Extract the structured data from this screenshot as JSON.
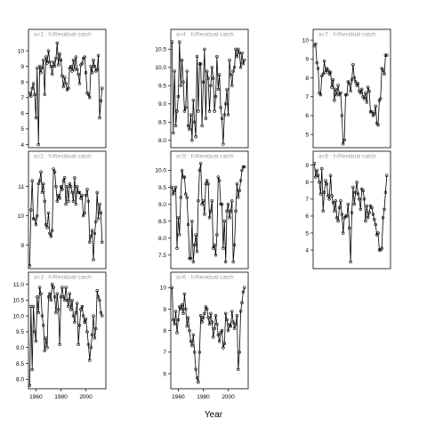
{
  "xlabel": "Year",
  "chart_data": [
    {
      "type": "line",
      "strip_label": "a=1 : f=Residual catch",
      "yticks": [
        4,
        5,
        6,
        7,
        8,
        9,
        10
      ],
      "ylim": [
        3.8,
        10.8
      ],
      "xlim": [
        1954,
        2016
      ],
      "x": [
        1955,
        1956,
        1957,
        1958,
        1959,
        1960,
        1961,
        1962,
        1963,
        1964,
        1965,
        1966,
        1967,
        1968,
        1969,
        1970,
        1971,
        1972,
        1973,
        1974,
        1975,
        1976,
        1977,
        1978,
        1979,
        1980,
        1981,
        1982,
        1983,
        1984,
        1985,
        1986,
        1987,
        1988,
        1989,
        1990,
        1991,
        1992,
        1993,
        1994,
        1995,
        1996,
        1997,
        1998,
        1999,
        2000,
        2001,
        2002,
        2003,
        2004,
        2005,
        2006,
        2007,
        2008,
        2009,
        2010,
        2011,
        2012,
        2013
      ],
      "y": [
        7.3,
        7.1,
        7.6,
        7.9,
        7.2,
        5.7,
        8.9,
        4.0,
        9.0,
        8.6,
        8.9,
        9.4,
        7.2,
        9.6,
        9.2,
        10.0,
        9.3,
        9.0,
        8.5,
        9.3,
        9.0,
        9.5,
        10.5,
        9.1,
        9.8,
        9.4,
        8.4,
        7.7,
        8.3,
        7.9,
        7.5,
        7.6,
        8.9,
        9.0,
        8.7,
        9.4,
        8.8,
        9.6,
        8.8,
        8.5,
        7.9,
        9.1,
        9.2,
        9.5,
        9.6,
        8.6,
        7.3,
        7.2,
        7.0,
        9.0,
        8.6,
        9.4,
        9.0,
        8.7,
        8.8,
        9.7,
        5.7,
        6.8,
        7.6
      ]
    },
    {
      "type": "line",
      "strip_label": "a=4 : f=Residual catch",
      "yticks": [
        8.0,
        8.5,
        9.0,
        9.5,
        10.0,
        10.5
      ],
      "ylim": [
        7.8,
        10.8
      ],
      "xlim": [
        1954,
        2016
      ],
      "x": [
        1955,
        1956,
        1957,
        1958,
        1959,
        1960,
        1961,
        1962,
        1963,
        1964,
        1965,
        1966,
        1967,
        1968,
        1969,
        1970,
        1971,
        1972,
        1973,
        1974,
        1975,
        1976,
        1977,
        1978,
        1979,
        1980,
        1981,
        1982,
        1983,
        1984,
        1985,
        1986,
        1987,
        1988,
        1989,
        1990,
        1991,
        1992,
        1993,
        1994,
        1995,
        1996,
        1997,
        1998,
        1999,
        2000,
        2001,
        2002,
        2003,
        2004,
        2005,
        2006,
        2007,
        2008,
        2009,
        2010,
        2011,
        2012,
        2013
      ],
      "y": [
        10.7,
        8.2,
        9.9,
        8.4,
        8.8,
        9.2,
        10.7,
        9.5,
        10.2,
        9.6,
        8.8,
        8.9,
        9.9,
        8.4,
        8.3,
        8.7,
        8.0,
        9.1,
        8.5,
        8.1,
        10.3,
        8.8,
        10.1,
        10.1,
        8.4,
        9.6,
        10.5,
        8.6,
        9.9,
        9.7,
        8.8,
        9.5,
        10.0,
        9.7,
        8.8,
        9.2,
        10.3,
        9.4,
        9.8,
        8.9,
        8.6,
        7.9,
        8.7,
        9.0,
        9.4,
        8.7,
        10.2,
        9.8,
        9.5,
        9.9,
        10.0,
        10.5,
        10.3,
        10.5,
        10.4,
        10.0,
        10.4,
        10.1,
        10.2
      ]
    },
    {
      "type": "line",
      "strip_label": "a=7 : f=Residual catch",
      "yticks": [
        5,
        6,
        7,
        8,
        9,
        10
      ],
      "ylim": [
        4.3,
        10.1
      ],
      "xlim": [
        1954,
        2016
      ],
      "x": [
        1955,
        1956,
        1957,
        1958,
        1959,
        1960,
        1961,
        1962,
        1963,
        1964,
        1965,
        1966,
        1967,
        1968,
        1969,
        1970,
        1971,
        1972,
        1973,
        1974,
        1975,
        1976,
        1977,
        1978,
        1979,
        1980,
        1981,
        1982,
        1983,
        1984,
        1985,
        1986,
        1987,
        1988,
        1989,
        1990,
        1991,
        1992,
        1993,
        1994,
        1995,
        1996,
        1997,
        1998,
        1999,
        2000,
        2001,
        2002,
        2003,
        2004,
        2005,
        2006,
        2007,
        2008,
        2009,
        2010,
        2011,
        2012,
        2013
      ],
      "y": [
        9.7,
        9.8,
        8.8,
        8.5,
        7.2,
        7.1,
        8.1,
        8.2,
        8.9,
        8.3,
        8.5,
        8.4,
        8.2,
        8.3,
        7.5,
        7.9,
        6.8,
        7.4,
        7.1,
        7.6,
        7.1,
        7.2,
        6.0,
        4.5,
        4.7,
        7.1,
        7.1,
        7.8,
        7.7,
        7.3,
        7.9,
        8.7,
        8.0,
        7.8,
        7.6,
        7.7,
        7.3,
        7.2,
        7.4,
        7.0,
        6.9,
        7.2,
        6.7,
        7.5,
        7.3,
        6.2,
        6.2,
        6.0,
        6.1,
        6.5,
        5.6,
        5.5,
        6.8,
        6.9,
        8.5,
        8.4,
        8.2,
        9.2,
        9.2
      ]
    },
    {
      "type": "line",
      "strip_label": "a=2 : f=Residual catch",
      "yticks": [
        9,
        10,
        11
      ],
      "ylim": [
        8.2,
        11.9
      ],
      "xlim": [
        1954,
        2016
      ],
      "x": [
        1955,
        1956,
        1957,
        1958,
        1959,
        1960,
        1961,
        1962,
        1963,
        1964,
        1965,
        1966,
        1967,
        1968,
        1969,
        1970,
        1971,
        1972,
        1973,
        1974,
        1975,
        1976,
        1977,
        1978,
        1979,
        1980,
        1981,
        1982,
        1983,
        1984,
        1985,
        1986,
        1987,
        1988,
        1989,
        1990,
        1991,
        1992,
        1993,
        1994,
        1995,
        1996,
        1997,
        1998,
        1999,
        2000,
        2001,
        2002,
        2003,
        2004,
        2005,
        2006,
        2007,
        2008,
        2009,
        2010,
        2011,
        2012,
        2013
      ],
      "y": [
        8.3,
        10.2,
        11.2,
        9.9,
        9.9,
        9.7,
        10.0,
        11.1,
        11.2,
        11.5,
        10.8,
        11.1,
        10.5,
        9.7,
        9.6,
        10.1,
        9.4,
        9.3,
        9.5,
        11.6,
        11.5,
        11.0,
        10.5,
        10.7,
        10.6,
        11.0,
        10.9,
        11.2,
        11.3,
        10.4,
        11.0,
        10.5,
        11.1,
        11.0,
        10.8,
        10.5,
        11.3,
        10.4,
        11.0,
        10.8,
        10.8,
        10.6,
        10.7,
        10.0,
        10.1,
        10.7,
        10.9,
        10.5,
        9.1,
        9.3,
        9.5,
        8.5,
        9.4,
        9.8,
        10.8,
        9.9,
        10.4,
        10.1,
        9.1
      ]
    },
    {
      "type": "line",
      "strip_label": "a=5 : f=Residual catch",
      "yticks": [
        7.5,
        8.0,
        8.5,
        9.0,
        9.5,
        10.0
      ],
      "ylim": [
        7.1,
        10.3
      ],
      "xlim": [
        1954,
        2016
      ],
      "x": [
        1955,
        1956,
        1957,
        1958,
        1959,
        1960,
        1961,
        1962,
        1963,
        1964,
        1965,
        1966,
        1967,
        1968,
        1969,
        1970,
        1971,
        1972,
        1973,
        1974,
        1975,
        1976,
        1977,
        1978,
        1979,
        1980,
        1981,
        1982,
        1983,
        1984,
        1985,
        1986,
        1987,
        1988,
        1989,
        1990,
        1991,
        1992,
        1993,
        1994,
        1995,
        1996,
        1997,
        1998,
        1999,
        2000,
        2001,
        2002,
        2003,
        2004,
        2005,
        2006,
        2007,
        2008,
        2009,
        2010,
        2011,
        2012,
        2013
      ],
      "y": [
        9.5,
        9.3,
        9.4,
        9.5,
        7.7,
        8.6,
        8.1,
        9.2,
        10.0,
        9.8,
        9.8,
        9.3,
        9.2,
        8.4,
        7.4,
        7.4,
        8.5,
        7.3,
        7.8,
        8.1,
        7.6,
        9.1,
        10.0,
        10.2,
        9.0,
        9.1,
        8.7,
        9.6,
        9.7,
        9.6,
        8.6,
        8.8,
        9.1,
        7.7,
        7.8,
        7.5,
        8.1,
        9.8,
        9.7,
        9.0,
        9.0,
        7.7,
        8.5,
        7.3,
        8.8,
        9.0,
        8.6,
        8.8,
        9.1,
        7.3,
        7.8,
        8.8,
        9.6,
        9.2,
        9.4,
        9.7,
        10.0,
        10.1,
        10.1
      ]
    },
    {
      "type": "line",
      "strip_label": "a=8 : f=Residual catch",
      "yticks": [
        4,
        5,
        6,
        7,
        8,
        9
      ],
      "ylim": [
        2.9,
        9.3
      ],
      "xlim": [
        1954,
        2016
      ],
      "x": [
        1955,
        1956,
        1957,
        1958,
        1959,
        1960,
        1961,
        1962,
        1963,
        1964,
        1965,
        1966,
        1967,
        1968,
        1969,
        1970,
        1971,
        1972,
        1973,
        1974,
        1975,
        1976,
        1977,
        1978,
        1979,
        1980,
        1981,
        1982,
        1983,
        1984,
        1985,
        1986,
        1987,
        1988,
        1989,
        1990,
        1991,
        1992,
        1993,
        1994,
        1995,
        1996,
        1997,
        1998,
        1999,
        2000,
        2001,
        2002,
        2003,
        2004,
        2005,
        2006,
        2007,
        2008,
        2009,
        2010,
        2011,
        2012,
        2013
      ],
      "y": [
        9.1,
        8.3,
        8.7,
        8.4,
        8.0,
        7.3,
        8.8,
        6.3,
        7.4,
        8.1,
        7.9,
        7.2,
        7.0,
        8.4,
        7.2,
        6.8,
        6.3,
        6.9,
        5.9,
        5.7,
        6.5,
        6.9,
        6.1,
        5.0,
        5.9,
        6.0,
        6.0,
        6.7,
        5.3,
        3.3,
        6.2,
        7.7,
        6.7,
        7.4,
        8.0,
        7.3,
        7.0,
        6.4,
        7.6,
        7.5,
        7.0,
        5.7,
        6.6,
        5.9,
        6.2,
        6.6,
        6.5,
        6.1,
        5.8,
        5.5,
        4.9,
        5.0,
        4.0,
        4.0,
        4.1,
        5.9,
        6.4,
        7.4,
        8.4
      ]
    },
    {
      "type": "line",
      "strip_label": "a=3 : f=Residual catch",
      "yticks": [
        8.0,
        8.5,
        9.0,
        9.5,
        10.0,
        10.5,
        11.0
      ],
      "ylim": [
        7.7,
        11.1
      ],
      "xlim": [
        1954,
        2016
      ],
      "x": [
        1955,
        1956,
        1957,
        1958,
        1959,
        1960,
        1961,
        1962,
        1963,
        1964,
        1965,
        1966,
        1967,
        1968,
        1969,
        1970,
        1971,
        1972,
        1973,
        1974,
        1975,
        1976,
        1977,
        1978,
        1979,
        1980,
        1981,
        1982,
        1983,
        1984,
        1985,
        1986,
        1987,
        1988,
        1989,
        1990,
        1991,
        1992,
        1993,
        1994,
        1995,
        1996,
        1997,
        1998,
        1999,
        2000,
        2001,
        2002,
        2003,
        2004,
        2005,
        2006,
        2007,
        2008,
        2009,
        2010,
        2011,
        2012,
        2013
      ],
      "y": [
        7.8,
        10.3,
        8.3,
        10.3,
        9.5,
        9.2,
        10.6,
        10.1,
        10.9,
        10.7,
        10.0,
        9.7,
        8.9,
        9.3,
        9.0,
        10.6,
        10.7,
        10.5,
        11.0,
        10.9,
        10.6,
        10.1,
        10.7,
        10.2,
        9.1,
        10.6,
        10.9,
        10.6,
        10.5,
        10.9,
        10.5,
        10.3,
        10.7,
        10.2,
        10.5,
        10.0,
        9.8,
        10.1,
        10.4,
        9.1,
        9.7,
        10.2,
        10.3,
        10.0,
        9.8,
        9.9,
        9.5,
        9.1,
        8.6,
        9.0,
        9.4,
        10.0,
        9.3,
        9.6,
        10.8,
        10.6,
        10.5,
        10.1,
        10.0
      ]
    },
    {
      "type": "line",
      "strip_label": "a=6 : f=Residual catch",
      "yticks": [
        6,
        7,
        8,
        9,
        10
      ],
      "ylim": [
        5.3,
        10.3
      ],
      "xlim": [
        1954,
        2016
      ],
      "x": [
        1955,
        1956,
        1957,
        1958,
        1959,
        1960,
        1961,
        1962,
        1963,
        1964,
        1965,
        1966,
        1967,
        1968,
        1969,
        1970,
        1971,
        1972,
        1973,
        1974,
        1975,
        1976,
        1977,
        1978,
        1979,
        1980,
        1981,
        1982,
        1983,
        1984,
        1985,
        1986,
        1987,
        1988,
        1989,
        1990,
        1991,
        1992,
        1993,
        1994,
        1995,
        1996,
        1997,
        1998,
        1999,
        2000,
        2001,
        2002,
        2003,
        2004,
        2005,
        2006,
        2007,
        2008,
        2009,
        2010,
        2011,
        2012,
        2013
      ],
      "y": [
        10.0,
        8.5,
        8.3,
        8.9,
        7.9,
        8.5,
        9.1,
        9.0,
        9.2,
        8.8,
        9.7,
        9.0,
        8.2,
        8.6,
        8.0,
        7.5,
        7.3,
        7.8,
        7.0,
        6.2,
        5.8,
        5.6,
        7.0,
        8.7,
        8.4,
        8.6,
        8.8,
        9.1,
        9.0,
        8.6,
        8.3,
        8.8,
        8.4,
        7.7,
        8.1,
        8.7,
        8.3,
        7.8,
        7.5,
        7.9,
        8.0,
        7.2,
        7.4,
        8.8,
        8.5,
        8.0,
        8.3,
        8.2,
        8.9,
        8.4,
        8.1,
        8.3,
        8.7,
        6.2,
        7.0,
        8.9,
        9.3,
        9.8,
        10.0
      ]
    }
  ]
}
